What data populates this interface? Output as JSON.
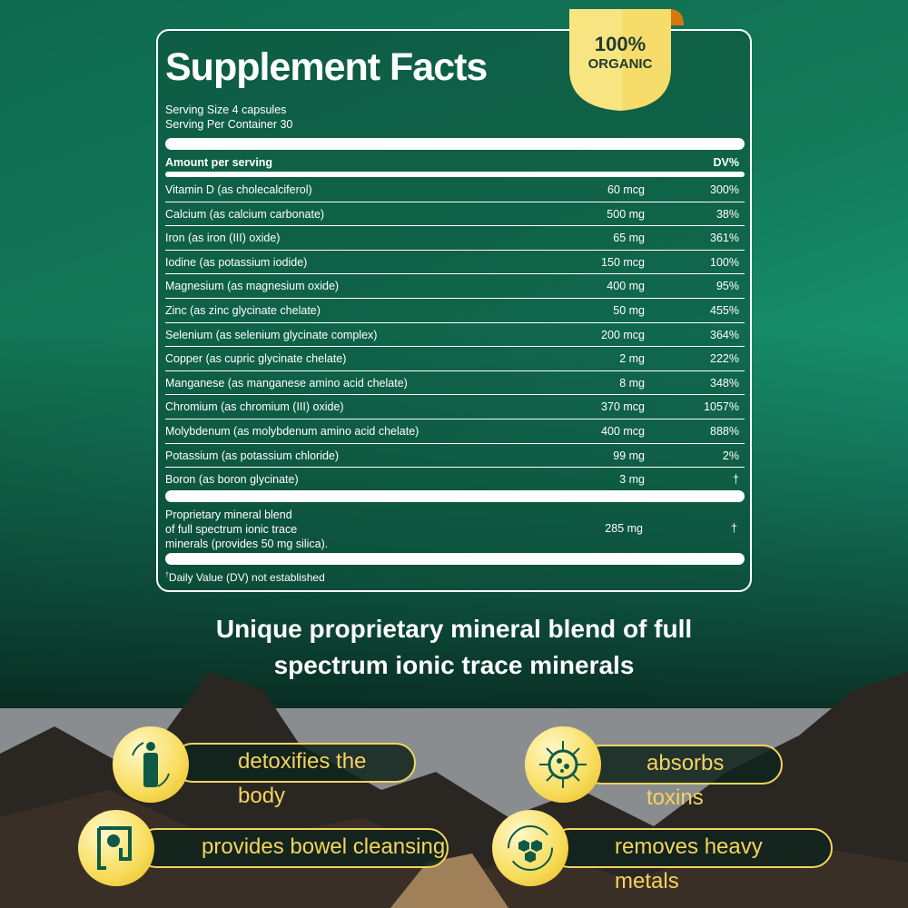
{
  "title": "Supplement Facts",
  "badge": {
    "line1": "100%",
    "line2": "ORGANIC"
  },
  "serving_size": "Serving Size 4 capsules",
  "servings_per_container": "Serving Per Container 30",
  "header": {
    "amount": "Amount per serving",
    "dv": "DV%"
  },
  "rows": [
    {
      "name": "Vitamin D (as cholecalciferol)",
      "amount": "60 mcg",
      "dv": "300%"
    },
    {
      "name": "Calcium (as calcium carbonate)",
      "amount": "500 mg",
      "dv": "38%"
    },
    {
      "name": "Iron (as iron (III) oxide)",
      "amount": "65 mg",
      "dv": "361%"
    },
    {
      "name": "Iodine (as potassium iodide)",
      "amount": "150 mcg",
      "dv": "100%"
    },
    {
      "name": "Magnesium (as magnesium oxide)",
      "amount": "400 mg",
      "dv": "95%"
    },
    {
      "name": "Zinc (as zinc glycinate chelate)",
      "amount": "50 mg",
      "dv": "455%"
    },
    {
      "name": "Selenium (as selenium glycinate complex)",
      "amount": "200 mcg",
      "dv": "364%"
    },
    {
      "name": "Copper (as cupric glycinate chelate)",
      "amount": "2 mg",
      "dv": "222%"
    },
    {
      "name": "Manganese (as manganese amino acid chelate)",
      "amount": "8 mg",
      "dv": "348%"
    },
    {
      "name": "Chromium (as chromium (III) oxide)",
      "amount": "370 mcg",
      "dv": "1057%"
    },
    {
      "name": "Molybdenum (as molybdenum amino acid chelate)",
      "amount": "400 mcg",
      "dv": "888%"
    },
    {
      "name": "Potassium (as potassium chloride)",
      "amount": "99 mg",
      "dv": "2%"
    },
    {
      "name": "Boron (as boron glycinate)",
      "amount": "3 mg",
      "dv": "†"
    }
  ],
  "blend": {
    "line1": "Proprietary mineral blend",
    "line2": "of full spectrum ionic trace",
    "line3": "minerals (provides 50 mg silica).",
    "amount": "285 mg",
    "dv": "†"
  },
  "footnote": {
    "mark": "†",
    "text": "Daily Value (DV) not established"
  },
  "subtitle": {
    "line1": "Unique proprietary mineral blend of full",
    "line2": "spectrum ionic trace minerals"
  },
  "benefits": [
    {
      "label": "detoxifies the body",
      "icon": "person-cycle-icon"
    },
    {
      "label": "absorbs toxins",
      "icon": "virus-icon"
    },
    {
      "label": "provides bowel cleansing",
      "icon": "intestine-icon"
    },
    {
      "label": "removes heavy metals",
      "icon": "hexagon-cycle-icon"
    }
  ],
  "colors": {
    "accent": "#f4d35e",
    "green": "#0f5a44"
  }
}
